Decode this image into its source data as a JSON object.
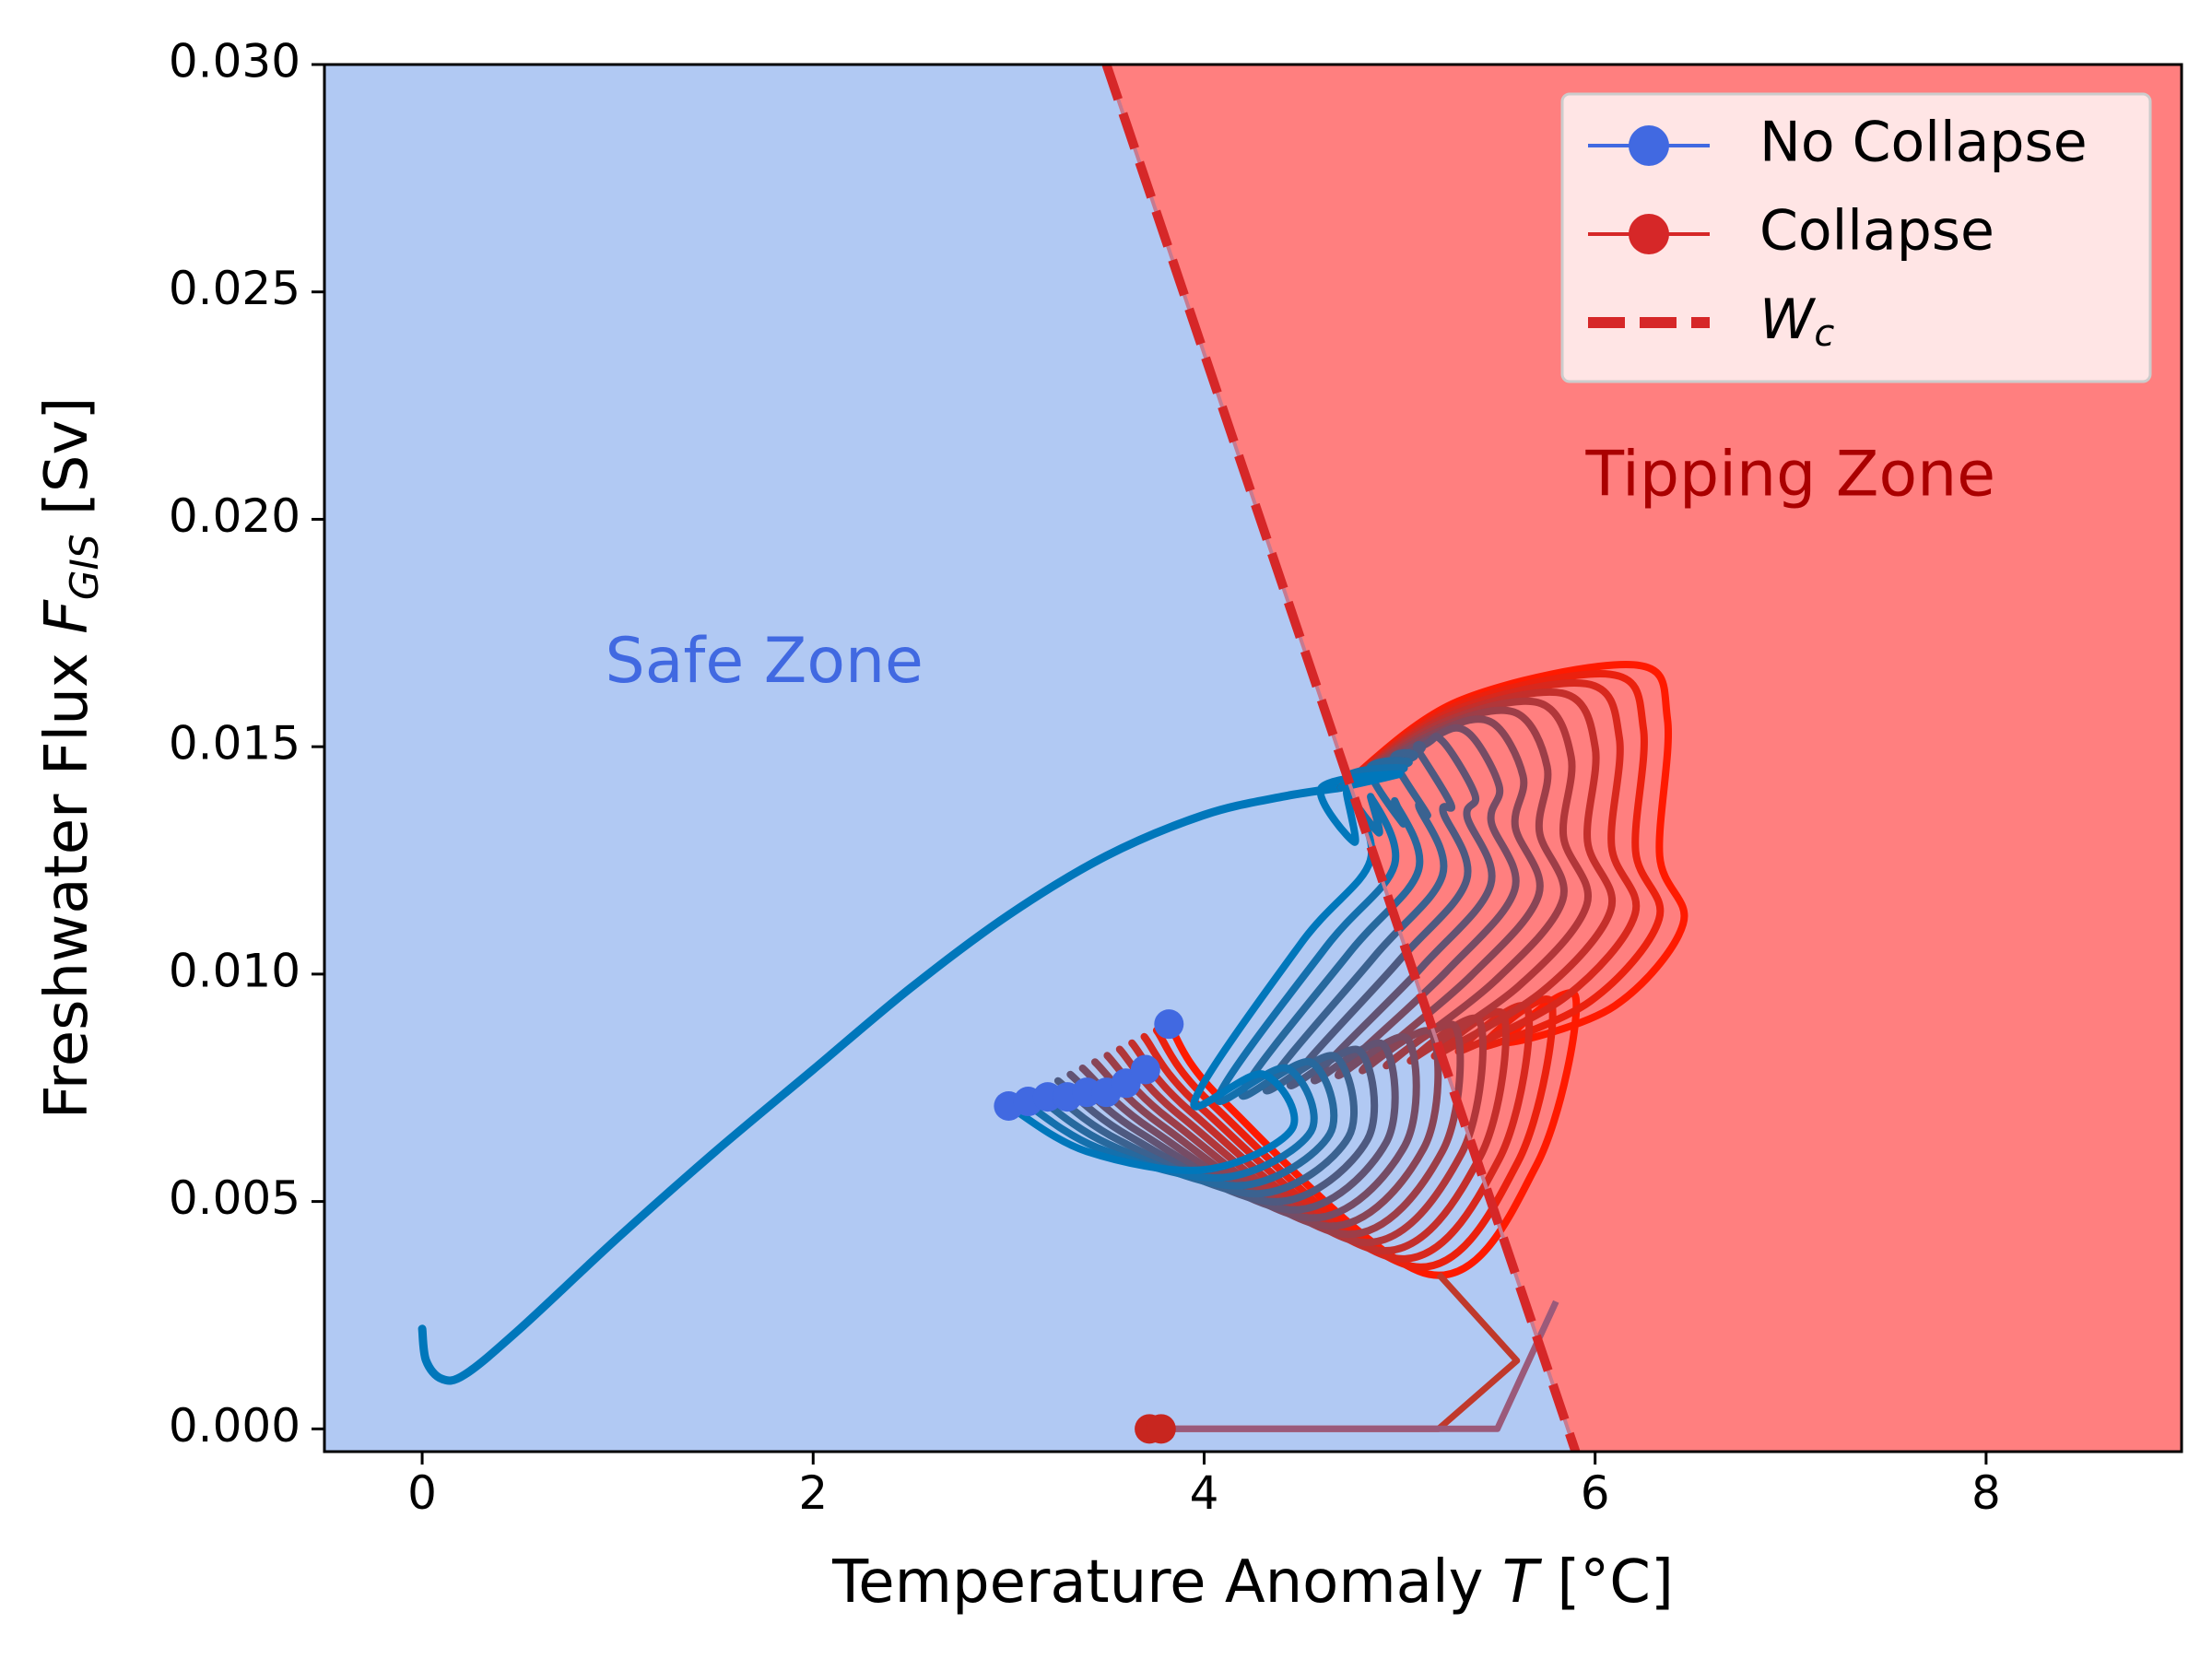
{
  "chart_data": {
    "type": "line",
    "xlabel": "Temperature Anomaly",
    "xlabel_symbol": "T",
    "xlabel_unit": "[°C]",
    "ylabel": "Freshwater Flux",
    "ylabel_symbol": "F",
    "ylabel_subscript": "GIS",
    "ylabel_unit": "[Sv]",
    "xlim": [
      -0.5,
      9.0
    ],
    "ylim": [
      -0.0005,
      0.03
    ],
    "xticks": [
      0,
      2,
      4,
      6,
      8
    ],
    "xtick_labels": [
      "0",
      "2",
      "4",
      "6",
      "8"
    ],
    "yticks": [
      0.0,
      0.005,
      0.01,
      0.015,
      0.02,
      0.025,
      0.03
    ],
    "ytick_labels": [
      "0.000",
      "0.005",
      "0.010",
      "0.015",
      "0.020",
      "0.025",
      "0.030"
    ],
    "grid": false,
    "legend_position": "top-right",
    "legend": [
      {
        "label": "No Collapse",
        "style": "line-marker",
        "color": "#4169e1"
      },
      {
        "label": "Collapse",
        "style": "line-marker",
        "color": "#d62728"
      },
      {
        "label": "W",
        "subscript": "c",
        "style": "dashed",
        "color": "#d62728"
      }
    ],
    "zones": [
      {
        "label": "Safe Zone",
        "color": "#4169e1",
        "fill": "#b1c9f3",
        "x": 1.75,
        "y": 0.0168
      },
      {
        "label": "Tipping Zone",
        "color": "#aa0000",
        "fill": "#ff7f7f",
        "x": 7.0,
        "y": 0.0209
      }
    ],
    "boundary_Wc": {
      "x": [
        3.5,
        5.9
      ],
      "y": [
        0.03,
        -0.0005
      ]
    },
    "colors": {
      "blue": "#0077bb",
      "red": "#ff1a00",
      "safe_fill": "#b1c9f3",
      "tipping_fill": "#ff7f7f"
    },
    "warmup_path": {
      "x": [
        0.0,
        0.02,
        0.1,
        0.22,
        0.5,
        1.0,
        1.5,
        2.0,
        2.5,
        3.0,
        3.5,
        4.0,
        4.4,
        4.7
      ],
      "y": [
        0.0022,
        0.0015,
        0.0011,
        0.0012,
        0.0022,
        0.0042,
        0.0061,
        0.0079,
        0.0097,
        0.0113,
        0.0126,
        0.0135,
        0.0139,
        0.0141
      ]
    },
    "trajectory_family": {
      "count": 14,
      "param": "s",
      "param_range": [
        0,
        1
      ],
      "loop_outer_x": {
        "at_s0": 4.85,
        "at_s1": 6.45
      },
      "loop_top_y": {
        "at_s0": 0.0141,
        "at_s1": 0.0168
      },
      "loop_right_y": {
        "at_s0": 0.0125,
        "at_s1": 0.0111
      },
      "lower_bottom_x": {
        "at_s0": 4.0,
        "at_s1": 5.15
      },
      "lower_bottom_y": {
        "at_s0": 0.0057,
        "at_s1": 0.0034
      },
      "end_point": {
        "at_s0": [
          3.0,
          0.0071
        ],
        "at_s1": [
          3.82,
          0.0089
        ]
      },
      "collapse_from_s": 0.9
    },
    "collapse_paths": [
      {
        "x": [
          5.2,
          5.6,
          5.2,
          3.72
        ],
        "y": [
          0.0034,
          0.0015,
          0.0,
          0.0
        ]
      },
      {
        "x": [
          5.8,
          5.5,
          3.78
        ],
        "y": [
          0.0028,
          0.0,
          0.0
        ]
      }
    ],
    "end_markers": {
      "no_collapse": [
        [
          3.0,
          0.0071
        ],
        [
          3.1,
          0.0072
        ],
        [
          3.2,
          0.0073
        ],
        [
          3.3,
          0.0073
        ],
        [
          3.4,
          0.0074
        ],
        [
          3.5,
          0.0074
        ],
        [
          3.6,
          0.0076
        ],
        [
          3.7,
          0.0079
        ],
        [
          3.82,
          0.0089
        ]
      ],
      "collapse": [
        [
          3.72,
          0.0
        ],
        [
          3.78,
          0.0
        ]
      ]
    }
  }
}
